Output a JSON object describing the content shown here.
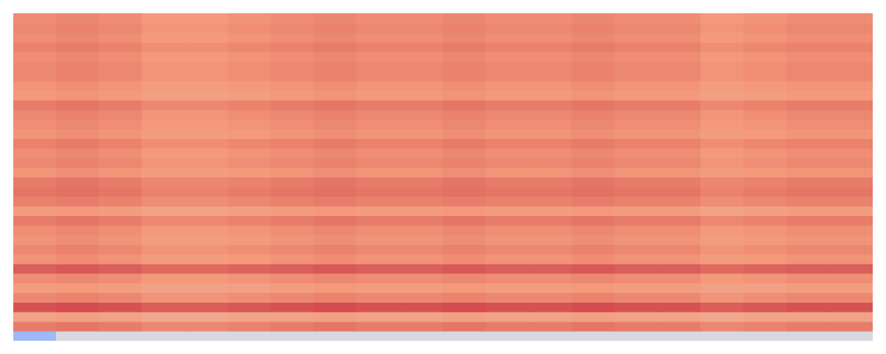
{
  "chart_data": {
    "type": "heatmap",
    "color": "coolwarm",
    "zlim": [
      0,
      1
    ],
    "tick_labels": false,
    "cells": [
      [
        0.77,
        0.78,
        0.77,
        0.75,
        0.75,
        0.76,
        0.77,
        0.78,
        0.77,
        0.77,
        0.78,
        0.77,
        0.77,
        0.78,
        0.77,
        0.77,
        0.75,
        0.76,
        0.77,
        0.77
      ],
      [
        0.78,
        0.79,
        0.78,
        0.76,
        0.76,
        0.77,
        0.78,
        0.79,
        0.78,
        0.78,
        0.79,
        0.78,
        0.78,
        0.79,
        0.78,
        0.78,
        0.76,
        0.77,
        0.78,
        0.78
      ],
      [
        0.77,
        0.78,
        0.77,
        0.75,
        0.75,
        0.76,
        0.77,
        0.78,
        0.77,
        0.77,
        0.78,
        0.77,
        0.77,
        0.78,
        0.77,
        0.77,
        0.75,
        0.76,
        0.77,
        0.77
      ],
      [
        0.79,
        0.8,
        0.79,
        0.77,
        0.77,
        0.78,
        0.79,
        0.8,
        0.79,
        0.79,
        0.8,
        0.79,
        0.79,
        0.8,
        0.79,
        0.79,
        0.77,
        0.78,
        0.79,
        0.79
      ],
      [
        0.77,
        0.78,
        0.77,
        0.75,
        0.75,
        0.76,
        0.77,
        0.78,
        0.77,
        0.77,
        0.78,
        0.77,
        0.77,
        0.78,
        0.77,
        0.77,
        0.75,
        0.76,
        0.77,
        0.77
      ],
      [
        0.78,
        0.79,
        0.78,
        0.76,
        0.76,
        0.77,
        0.78,
        0.79,
        0.78,
        0.78,
        0.79,
        0.78,
        0.78,
        0.79,
        0.78,
        0.78,
        0.76,
        0.77,
        0.78,
        0.78
      ],
      [
        0.78,
        0.79,
        0.78,
        0.76,
        0.76,
        0.77,
        0.78,
        0.79,
        0.78,
        0.78,
        0.79,
        0.78,
        0.78,
        0.79,
        0.78,
        0.78,
        0.76,
        0.77,
        0.78,
        0.78
      ],
      [
        0.76,
        0.77,
        0.76,
        0.74,
        0.74,
        0.75,
        0.76,
        0.77,
        0.76,
        0.76,
        0.77,
        0.76,
        0.76,
        0.77,
        0.76,
        0.76,
        0.74,
        0.75,
        0.76,
        0.76
      ],
      [
        0.75,
        0.76,
        0.75,
        0.73,
        0.73,
        0.74,
        0.75,
        0.76,
        0.75,
        0.75,
        0.76,
        0.75,
        0.75,
        0.76,
        0.75,
        0.75,
        0.73,
        0.74,
        0.75,
        0.75
      ],
      [
        0.8,
        0.81,
        0.8,
        0.78,
        0.78,
        0.79,
        0.8,
        0.81,
        0.8,
        0.8,
        0.81,
        0.8,
        0.8,
        0.81,
        0.8,
        0.8,
        0.78,
        0.79,
        0.8,
        0.8
      ],
      [
        0.78,
        0.79,
        0.78,
        0.76,
        0.76,
        0.77,
        0.78,
        0.79,
        0.78,
        0.78,
        0.79,
        0.78,
        0.78,
        0.79,
        0.78,
        0.78,
        0.76,
        0.77,
        0.78,
        0.78
      ],
      [
        0.77,
        0.78,
        0.77,
        0.75,
        0.75,
        0.76,
        0.77,
        0.78,
        0.77,
        0.77,
        0.78,
        0.77,
        0.77,
        0.78,
        0.77,
        0.77,
        0.75,
        0.76,
        0.77,
        0.77
      ],
      [
        0.76,
        0.77,
        0.76,
        0.74,
        0.74,
        0.75,
        0.76,
        0.77,
        0.76,
        0.76,
        0.77,
        0.76,
        0.76,
        0.77,
        0.76,
        0.76,
        0.74,
        0.75,
        0.76,
        0.76
      ],
      [
        0.79,
        0.8,
        0.79,
        0.77,
        0.77,
        0.78,
        0.79,
        0.8,
        0.79,
        0.79,
        0.8,
        0.79,
        0.79,
        0.8,
        0.79,
        0.79,
        0.77,
        0.78,
        0.79,
        0.79
      ],
      [
        0.77,
        0.78,
        0.77,
        0.75,
        0.75,
        0.76,
        0.77,
        0.78,
        0.77,
        0.77,
        0.78,
        0.77,
        0.77,
        0.78,
        0.77,
        0.77,
        0.75,
        0.76,
        0.77,
        0.77
      ],
      [
        0.78,
        0.79,
        0.78,
        0.76,
        0.76,
        0.77,
        0.78,
        0.79,
        0.78,
        0.78,
        0.79,
        0.78,
        0.78,
        0.79,
        0.78,
        0.78,
        0.76,
        0.77,
        0.78,
        0.78
      ],
      [
        0.76,
        0.77,
        0.76,
        0.74,
        0.74,
        0.75,
        0.76,
        0.77,
        0.76,
        0.76,
        0.77,
        0.76,
        0.76,
        0.77,
        0.76,
        0.76,
        0.74,
        0.75,
        0.76,
        0.76
      ],
      [
        0.8,
        0.81,
        0.8,
        0.78,
        0.78,
        0.79,
        0.8,
        0.81,
        0.8,
        0.8,
        0.81,
        0.8,
        0.8,
        0.81,
        0.8,
        0.8,
        0.78,
        0.79,
        0.8,
        0.8
      ],
      [
        0.81,
        0.82,
        0.81,
        0.79,
        0.79,
        0.8,
        0.81,
        0.82,
        0.81,
        0.81,
        0.82,
        0.81,
        0.81,
        0.82,
        0.81,
        0.81,
        0.79,
        0.8,
        0.81,
        0.81
      ],
      [
        0.79,
        0.8,
        0.79,
        0.77,
        0.77,
        0.78,
        0.79,
        0.8,
        0.79,
        0.79,
        0.8,
        0.79,
        0.79,
        0.8,
        0.79,
        0.79,
        0.77,
        0.78,
        0.79,
        0.79
      ],
      [
        0.74,
        0.75,
        0.74,
        0.72,
        0.72,
        0.73,
        0.74,
        0.75,
        0.74,
        0.74,
        0.75,
        0.74,
        0.74,
        0.75,
        0.74,
        0.74,
        0.72,
        0.73,
        0.74,
        0.74
      ],
      [
        0.8,
        0.81,
        0.8,
        0.78,
        0.78,
        0.79,
        0.8,
        0.81,
        0.8,
        0.8,
        0.81,
        0.8,
        0.8,
        0.81,
        0.8,
        0.8,
        0.78,
        0.79,
        0.8,
        0.8
      ],
      [
        0.77,
        0.78,
        0.77,
        0.75,
        0.75,
        0.76,
        0.77,
        0.78,
        0.77,
        0.77,
        0.78,
        0.77,
        0.77,
        0.78,
        0.77,
        0.77,
        0.75,
        0.76,
        0.77,
        0.77
      ],
      [
        0.76,
        0.77,
        0.76,
        0.74,
        0.74,
        0.75,
        0.76,
        0.77,
        0.76,
        0.76,
        0.77,
        0.76,
        0.76,
        0.77,
        0.76,
        0.76,
        0.74,
        0.75,
        0.76,
        0.76
      ],
      [
        0.78,
        0.79,
        0.78,
        0.76,
        0.76,
        0.77,
        0.78,
        0.79,
        0.78,
        0.78,
        0.79,
        0.78,
        0.78,
        0.79,
        0.78,
        0.78,
        0.76,
        0.77,
        0.78,
        0.78
      ],
      [
        0.76,
        0.77,
        0.76,
        0.74,
        0.74,
        0.75,
        0.76,
        0.77,
        0.76,
        0.76,
        0.77,
        0.76,
        0.76,
        0.77,
        0.76,
        0.76,
        0.74,
        0.75,
        0.76,
        0.76
      ],
      [
        0.85,
        0.86,
        0.85,
        0.83,
        0.83,
        0.84,
        0.85,
        0.86,
        0.85,
        0.85,
        0.86,
        0.85,
        0.85,
        0.86,
        0.85,
        0.85,
        0.83,
        0.84,
        0.85,
        0.85
      ],
      [
        0.77,
        0.78,
        0.77,
        0.75,
        0.75,
        0.76,
        0.77,
        0.78,
        0.77,
        0.77,
        0.78,
        0.77,
        0.77,
        0.78,
        0.77,
        0.77,
        0.75,
        0.76,
        0.77,
        0.77
      ],
      [
        0.74,
        0.75,
        0.74,
        0.72,
        0.72,
        0.73,
        0.74,
        0.75,
        0.74,
        0.74,
        0.75,
        0.74,
        0.74,
        0.75,
        0.74,
        0.74,
        0.72,
        0.73,
        0.74,
        0.74
      ],
      [
        0.78,
        0.79,
        0.78,
        0.76,
        0.76,
        0.77,
        0.78,
        0.79,
        0.78,
        0.78,
        0.79,
        0.78,
        0.78,
        0.79,
        0.78,
        0.78,
        0.76,
        0.77,
        0.78,
        0.78
      ],
      [
        0.87,
        0.88,
        0.87,
        0.85,
        0.85,
        0.86,
        0.87,
        0.88,
        0.87,
        0.87,
        0.88,
        0.87,
        0.87,
        0.88,
        0.87,
        0.87,
        0.85,
        0.86,
        0.87,
        0.87
      ],
      [
        0.72,
        0.73,
        0.72,
        0.7,
        0.7,
        0.71,
        0.72,
        0.73,
        0.72,
        0.72,
        0.73,
        0.72,
        0.72,
        0.73,
        0.72,
        0.72,
        0.7,
        0.71,
        0.72,
        0.72
      ],
      [
        0.8,
        0.81,
        0.8,
        0.78,
        0.78,
        0.79,
        0.8,
        0.81,
        0.8,
        0.8,
        0.81,
        0.8,
        0.8,
        0.81,
        0.8,
        0.8,
        0.78,
        0.79,
        0.8,
        0.8
      ],
      [
        0.3,
        0.48,
        0.48,
        0.48,
        0.48,
        0.48,
        0.48,
        0.48,
        0.48,
        0.48,
        0.48,
        0.48,
        0.48,
        0.48,
        0.48,
        0.48,
        0.48,
        0.48,
        0.48,
        0.48
      ]
    ]
  }
}
